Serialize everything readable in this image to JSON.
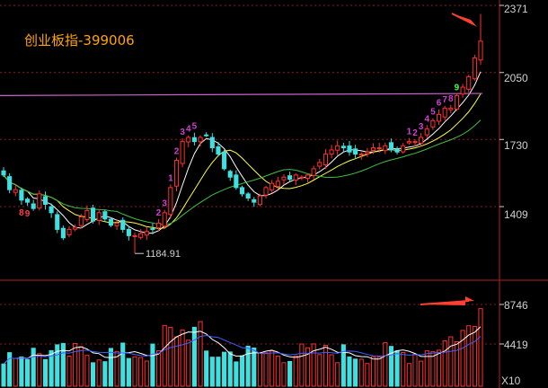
{
  "title": "创业板指-399006",
  "colors": {
    "background": "#000000",
    "up": "#ff3030",
    "down": "#40e0e0",
    "grid": "#8a1c1c",
    "ma_long": "#d060d0",
    "ma5": "#ffffff",
    "ma10": "#ffff40",
    "ma20": "#40c040",
    "td_up": "#d040d0",
    "td_down": "#ff4040",
    "td_nine": "#40ff40",
    "annotation": "#ff4030"
  },
  "chart_data": [
    {
      "type": "candlestick",
      "yticks": [
        "2371",
        "2050",
        "1730",
        "1409"
      ],
      "ylim": [
        1100,
        2371
      ],
      "low_label": "1184.91",
      "series": [
        {
          "name": "close",
          "values": [
            1560,
            1490,
            1490,
            1440,
            1430,
            1400,
            1470,
            1420,
            1380,
            1300,
            1260,
            1300,
            1310,
            1360,
            1390,
            1340,
            1380,
            1350,
            1320,
            1330,
            1300,
            1270,
            1270,
            1280,
            1290,
            1300,
            1330,
            1380,
            1500,
            1630,
            1720,
            1740,
            1720,
            1740,
            1750,
            1690,
            1660,
            1590,
            1550,
            1500,
            1470,
            1450,
            1430,
            1460,
            1500,
            1520,
            1530,
            1550,
            1540,
            1560,
            1550,
            1560,
            1590,
            1620,
            1660,
            1680,
            1700,
            1690,
            1670,
            1660,
            1660,
            1670,
            1690,
            1690,
            1700,
            1680,
            1670,
            1700,
            1720,
            1720,
            1740,
            1780,
            1820,
            1850,
            1880,
            1880,
            1940,
            1980,
            2030,
            2120,
            2200
          ]
        },
        {
          "name": "ma_long",
          "values": [
            1940,
            1950
          ]
        }
      ],
      "td_up_counts": [
        [
          "2",
          "3"
        ],
        [
          "1",
          "2",
          "3",
          "4",
          "5"
        ],
        [
          "1",
          "2",
          "3",
          "4",
          "5",
          "6",
          "7",
          "8",
          "9"
        ]
      ],
      "td_down_counts": [
        "8",
        "9"
      ]
    },
    {
      "type": "bar",
      "yticks": [
        "8746",
        "4419"
      ],
      "unit": "X10"
    }
  ]
}
